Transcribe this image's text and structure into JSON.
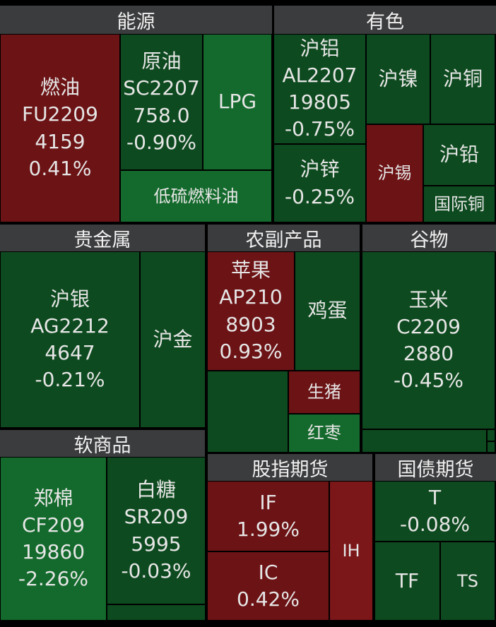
{
  "sections": [
    {
      "title": "能源",
      "tiles": [
        {
          "lines": [
            "燃油",
            "FU2209",
            "4159",
            "0.41%"
          ]
        },
        {
          "lines": [
            "原油",
            "SC2207",
            "758.0",
            "-0.90%"
          ]
        },
        {
          "lines": [
            "LPG"
          ]
        },
        {
          "lines": [
            "低硫燃料油"
          ]
        }
      ]
    },
    {
      "title": "有色",
      "tiles": [
        {
          "lines": [
            "沪铝",
            "AL2207",
            "19805",
            "-0.75%"
          ]
        },
        {
          "lines": [
            "沪镍"
          ]
        },
        {
          "lines": [
            "沪铜"
          ]
        },
        {
          "lines": [
            "沪锌",
            "-0.25%"
          ]
        },
        {
          "lines": [
            "沪锡"
          ]
        },
        {
          "lines": [
            "沪铅"
          ]
        },
        {
          "lines": [
            "国际铜"
          ]
        }
      ]
    },
    {
      "title": "贵金属",
      "tiles": [
        {
          "lines": [
            "沪银",
            "AG2212",
            "4647",
            "-0.21%"
          ]
        },
        {
          "lines": [
            "沪金"
          ]
        }
      ]
    },
    {
      "title": "农副产品",
      "tiles": [
        {
          "lines": [
            "苹果",
            "AP210",
            "8903",
            "0.93%"
          ]
        },
        {
          "lines": [
            "鸡蛋"
          ]
        },
        {
          "lines": [
            "生猪"
          ]
        },
        {
          "lines": [
            "红枣"
          ]
        }
      ]
    },
    {
      "title": "谷物",
      "tiles": [
        {
          "lines": [
            "玉米",
            "C2209",
            "2880",
            "-0.45%"
          ]
        }
      ]
    },
    {
      "title": "软商品",
      "tiles": [
        {
          "lines": [
            "郑棉",
            "CF209",
            "19860",
            "-2.26%"
          ]
        },
        {
          "lines": [
            "白糖",
            "SR209",
            "5995",
            "-0.03%"
          ]
        }
      ]
    },
    {
      "title": "股指期货",
      "tiles": [
        {
          "lines": [
            "IF",
            "1.99%"
          ]
        },
        {
          "lines": [
            "IC",
            "0.42%"
          ]
        },
        {
          "lines": [
            "IH"
          ]
        }
      ]
    },
    {
      "title": "国债期货",
      "tiles": [
        {
          "lines": [
            "T",
            "-0.08%"
          ]
        },
        {
          "lines": [
            "TF"
          ]
        },
        {
          "lines": [
            "TS"
          ]
        }
      ]
    }
  ]
}
